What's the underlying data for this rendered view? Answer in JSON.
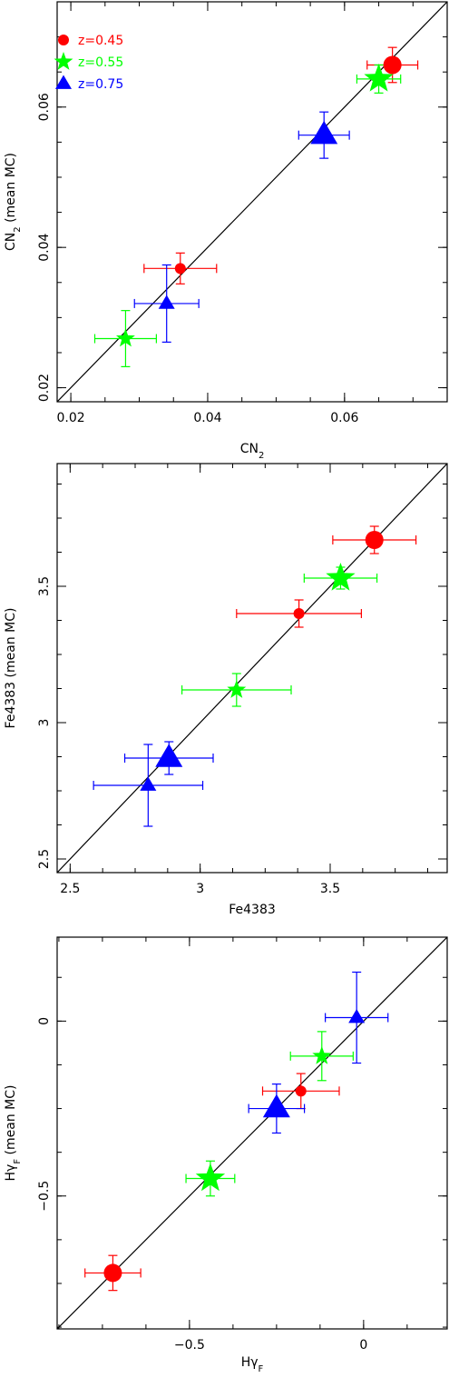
{
  "colors": {
    "z045": "#ff0000",
    "z055": "#00ff00",
    "z075": "#0000ff"
  },
  "legend": [
    {
      "label": "z=0.45",
      "color": "#ff0000",
      "marker": "circle"
    },
    {
      "label": "z=0.55",
      "color": "#00ff00",
      "marker": "star"
    },
    {
      "label": "z=0.75",
      "color": "#0000ff",
      "marker": "triangle"
    }
  ],
  "chart_data": [
    {
      "type": "scatter",
      "xlabel": "CN2",
      "ylabel": "CN2 (mean MC)",
      "xlim": [
        0.018,
        0.075
      ],
      "ylim": [
        0.018,
        0.075
      ],
      "xticks": [
        {
          "v": 0.02,
          "label": "0.02"
        },
        {
          "v": 0.04,
          "label": "0.04"
        },
        {
          "v": 0.06,
          "label": "0.06"
        }
      ],
      "yticks": [
        {
          "v": 0.02,
          "label": "0.02"
        },
        {
          "v": 0.04,
          "label": "0.04"
        },
        {
          "v": 0.06,
          "label": "0.06"
        }
      ],
      "identity_line": true,
      "points": [
        {
          "series": "z=0.45",
          "x": 0.036,
          "y": 0.037,
          "xerr": 0.0053,
          "yerr": 0.0022,
          "size": "small"
        },
        {
          "series": "z=0.45",
          "x": 0.067,
          "y": 0.066,
          "xerr": 0.0037,
          "yerr": 0.0025,
          "size": "large"
        },
        {
          "series": "z=0.55",
          "x": 0.028,
          "y": 0.027,
          "xerr": 0.0045,
          "yerr": 0.004,
          "size": "small"
        },
        {
          "series": "z=0.55",
          "x": 0.065,
          "y": 0.064,
          "xerr": 0.0032,
          "yerr": 0.002,
          "size": "large"
        },
        {
          "series": "z=0.75",
          "x": 0.034,
          "y": 0.032,
          "xerr": 0.0047,
          "yerr": 0.0055,
          "size": "small"
        },
        {
          "series": "z=0.75",
          "x": 0.057,
          "y": 0.056,
          "xerr": 0.0037,
          "yerr": 0.0033,
          "size": "large"
        }
      ]
    },
    {
      "type": "scatter",
      "xlabel": "Fe4383",
      "ylabel": "Fe4383 (mean MC)",
      "xlim": [
        2.45,
        3.95
      ],
      "ylim": [
        2.45,
        3.95
      ],
      "xticks": [
        {
          "v": 2.5,
          "label": "2.5"
        },
        {
          "v": 3,
          "label": "3"
        },
        {
          "v": 3.5,
          "label": "3.5"
        }
      ],
      "yticks": [
        {
          "v": 2.5,
          "label": "2.5"
        },
        {
          "v": 3,
          "label": "3"
        },
        {
          "v": 3.5,
          "label": "3.5"
        }
      ],
      "identity_line": true,
      "points": [
        {
          "series": "z=0.45",
          "x": 3.38,
          "y": 3.4,
          "xerr": 0.24,
          "yerr": 0.05,
          "size": "small"
        },
        {
          "series": "z=0.45",
          "x": 3.67,
          "y": 3.67,
          "xerr": 0.16,
          "yerr": 0.05,
          "size": "large"
        },
        {
          "series": "z=0.55",
          "x": 3.14,
          "y": 3.12,
          "xerr": 0.21,
          "yerr": 0.06,
          "size": "small"
        },
        {
          "series": "z=0.55",
          "x": 3.54,
          "y": 3.53,
          "xerr": 0.14,
          "yerr": 0.04,
          "size": "large"
        },
        {
          "series": "z=0.75",
          "x": 2.8,
          "y": 2.77,
          "xerr": 0.21,
          "yerr": 0.15,
          "size": "small"
        },
        {
          "series": "z=0.75",
          "x": 2.88,
          "y": 2.87,
          "xerr": 0.17,
          "yerr": 0.06,
          "size": "large"
        }
      ]
    },
    {
      "type": "scatter",
      "xlabel": "Hγ_F",
      "ylabel": "Hγ_F (mean MC)",
      "xlim": [
        -0.88,
        0.24
      ],
      "ylim": [
        -0.88,
        0.24
      ],
      "xticks": [
        {
          "v": -0.5,
          "label": "−0.5"
        },
        {
          "v": 0,
          "label": "0"
        }
      ],
      "yticks": [
        {
          "v": -0.5,
          "label": "−0.5"
        },
        {
          "v": 0,
          "label": "0"
        }
      ],
      "identity_line": true,
      "points": [
        {
          "series": "z=0.45",
          "x": -0.18,
          "y": -0.2,
          "xerr": 0.11,
          "yerr": 0.05,
          "size": "small"
        },
        {
          "series": "z=0.45",
          "x": -0.72,
          "y": -0.72,
          "xerr": 0.08,
          "yerr": 0.05,
          "size": "large"
        },
        {
          "series": "z=0.55",
          "x": -0.12,
          "y": -0.1,
          "xerr": 0.09,
          "yerr": 0.07,
          "size": "small"
        },
        {
          "series": "z=0.55",
          "x": -0.44,
          "y": -0.45,
          "xerr": 0.07,
          "yerr": 0.05,
          "size": "large"
        },
        {
          "series": "z=0.75",
          "x": -0.02,
          "y": 0.01,
          "xerr": 0.09,
          "yerr": 0.13,
          "size": "small"
        },
        {
          "series": "z=0.75",
          "x": -0.25,
          "y": -0.25,
          "xerr": 0.08,
          "yerr": 0.07,
          "size": "large"
        }
      ]
    }
  ]
}
